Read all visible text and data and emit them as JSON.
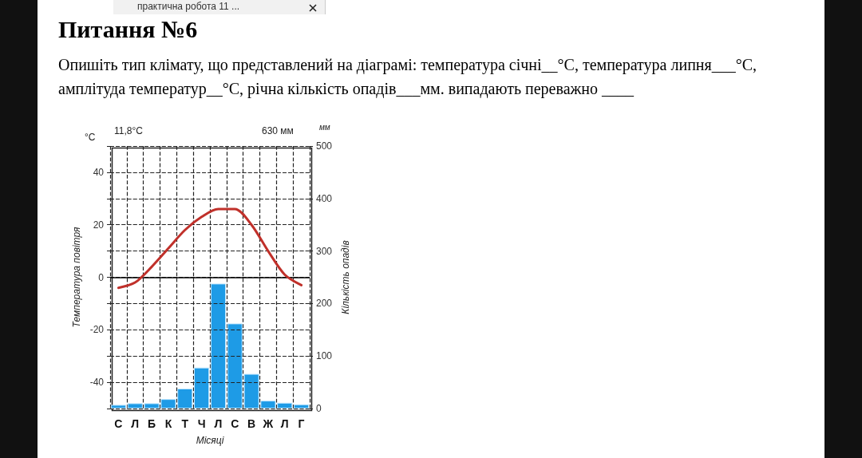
{
  "chart_data": {
    "type": "bar",
    "title": "Питання №6",
    "subtitle": "Опишіть тип клімату, що представлений на діаграмі: температура січні__°С, температура липня___°С, амплітуда температур__°С, річна кількість опадів___мм. випадають переважно ____",
    "xlabel": "Місяці",
    "ylabel": "Температура повітря",
    "y2label": "Кількість опадів",
    "annotations": [
      "практична робота 11 ...",
      "11,8°C",
      "630 мм",
      "°C",
      "мм"
    ],
    "categories": [
      "С",
      "Л",
      "Б",
      "К",
      "Т",
      "Ч",
      "Л",
      "С",
      "В",
      "Ж",
      "Л",
      "Г"
    ],
    "series": [
      {
        "axis": "y2",
        "color": "#1e9be6",
        "values": [
          7,
          10,
          10,
          18,
          38,
          78,
          238,
          162,
          66,
          15,
          11,
          8
        ]
      },
      {
        "type": "line",
        "color": "#c0302a",
        "values": [
          -4,
          -2,
          4,
          11,
          18,
          23,
          26,
          26,
          20,
          10,
          1,
          -3
        ]
      }
    ],
    "ylim": [
      -50,
      50
    ],
    "yticks": [
      {
        "value": -50,
        "label": null
      },
      -40,
      {
        "value": -30,
        "label": null
      },
      -20,
      {
        "value": -10,
        "label": null
      },
      0,
      {
        "value": 10,
        "label": null
      },
      20,
      {
        "value": 30,
        "label": null
      },
      40,
      {
        "value": 50,
        "label": null
      }
    ],
    "y2lim": [
      0,
      500
    ],
    "y2ticks": [
      0,
      100,
      200,
      300,
      400,
      500
    ],
    "ref_lines": [
      {
        "axis": "y",
        "value": 0,
        "color": "#000000"
      }
    ],
    "grid": true,
    "marker": "none",
    "line_style": "solid"
  }
}
